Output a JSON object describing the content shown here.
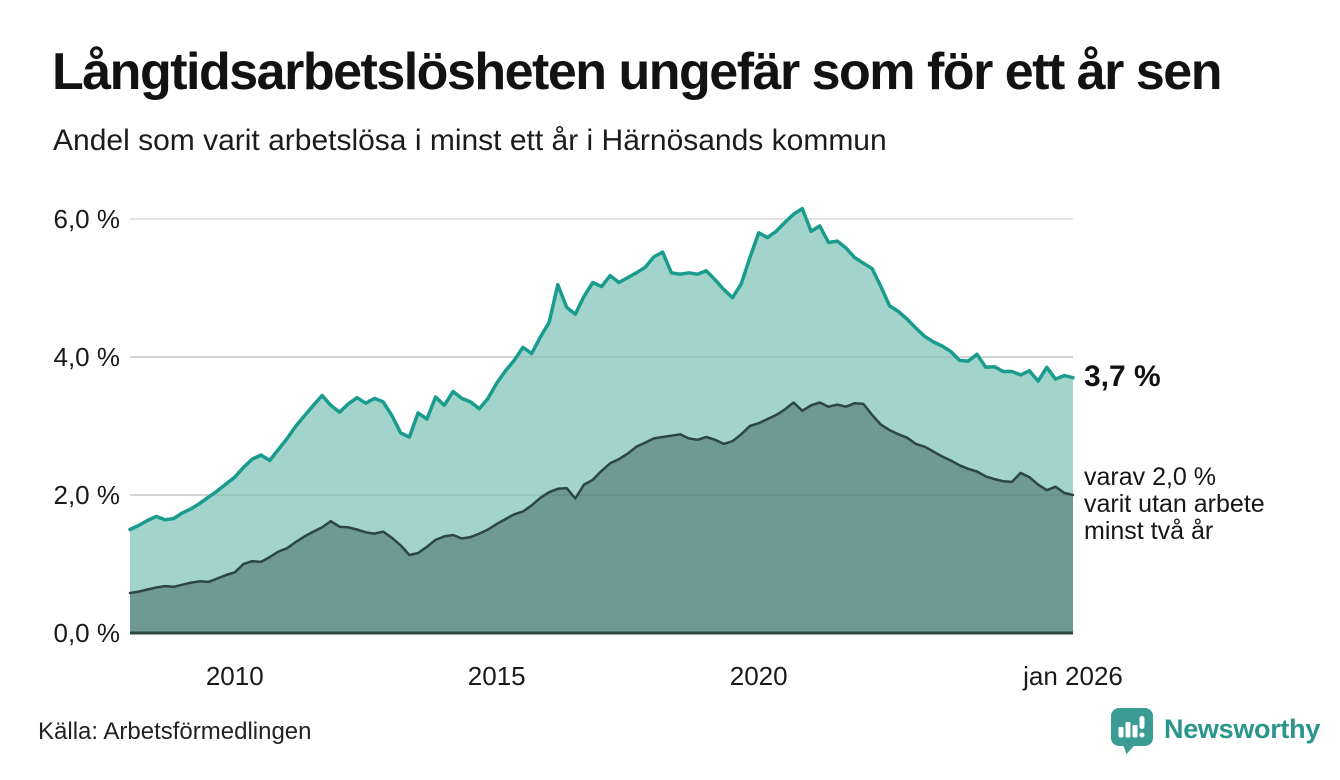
{
  "header": {
    "title": "Långtidsarbetslösheten ungefär som för ett år sen",
    "subtitle": "Andel som varit arbetslösa i minst ett år i Härnösands kommun"
  },
  "footer": {
    "source": "Källa: Arbetsförmedlingen",
    "brand": "Newsworthy"
  },
  "chart_data": {
    "type": "area",
    "title": "Långtidsarbetslösheten ungefär som för ett år sen",
    "subtitle": "Andel som varit arbetslösa i minst ett år i Härnösands kommun",
    "region": "Härnösands kommun",
    "unit": "%",
    "x_range": [
      2008,
      2026
    ],
    "ylim": [
      0,
      6.4
    ],
    "grid": true,
    "x_start": 2008,
    "x_step_years": 0.1666667,
    "x_ticks": [
      {
        "value": 2010,
        "label": "2010"
      },
      {
        "value": 2015,
        "label": "2015"
      },
      {
        "value": 2020,
        "label": "2020"
      },
      {
        "value": 2026,
        "label": "jan 2026"
      }
    ],
    "y_ticks": [
      {
        "value": 0,
        "label": "0,0 %"
      },
      {
        "value": 2,
        "label": "2,0 %"
      },
      {
        "value": 4,
        "label": "4,0 %"
      },
      {
        "value": 6,
        "label": "6,0 %"
      }
    ],
    "colors": {
      "series1_line": "#199c8d",
      "series1_fill": "#a2d4cc",
      "series2_line": "#2c4742",
      "series2_fill": "#6f9a94",
      "gridline": "#d8d8d8",
      "brand_teal": "#2b968c"
    },
    "series": [
      {
        "name": "Andel arbetslösa minst ett år",
        "line_color": "#199c8d",
        "fill_color": "#a2d4cc",
        "values": [
          1.5,
          1.56,
          1.63,
          1.69,
          1.64,
          1.66,
          1.74,
          1.8,
          1.88,
          1.97,
          2.06,
          2.16,
          2.26,
          2.4,
          2.52,
          2.58,
          2.5,
          2.66,
          2.82,
          3.0,
          3.15,
          3.3,
          3.44,
          3.3,
          3.2,
          3.32,
          3.41,
          3.33,
          3.4,
          3.35,
          3.15,
          2.9,
          2.84,
          3.19,
          3.1,
          3.42,
          3.3,
          3.5,
          3.4,
          3.35,
          3.25,
          3.4,
          3.62,
          3.8,
          3.95,
          4.14,
          4.05,
          4.29,
          4.5,
          5.05,
          4.72,
          4.62,
          4.88,
          5.08,
          5.02,
          5.18,
          5.08,
          5.15,
          5.22,
          5.3,
          5.45,
          5.52,
          5.22,
          5.2,
          5.22,
          5.2,
          5.25,
          5.12,
          4.98,
          4.86,
          5.06,
          5.44,
          5.8,
          5.73,
          5.82,
          5.95,
          6.07,
          6.15,
          5.82,
          5.9,
          5.66,
          5.68,
          5.58,
          5.44,
          5.36,
          5.28,
          5.02,
          4.74,
          4.66,
          4.55,
          4.42,
          4.3,
          4.22,
          4.16,
          4.08,
          3.95,
          3.94,
          4.04,
          3.85,
          3.86,
          3.79,
          3.79,
          3.74,
          3.8,
          3.65,
          3.85,
          3.68,
          3.73,
          3.7
        ]
      },
      {
        "name": "varav utan arbete minst två år",
        "line_color": "#2c4742",
        "fill_color": "#6f9a94",
        "values": [
          0.58,
          0.6,
          0.63,
          0.66,
          0.68,
          0.67,
          0.7,
          0.73,
          0.75,
          0.74,
          0.79,
          0.84,
          0.88,
          1.0,
          1.04,
          1.03,
          1.1,
          1.18,
          1.23,
          1.32,
          1.4,
          1.47,
          1.53,
          1.62,
          1.54,
          1.53,
          1.5,
          1.46,
          1.44,
          1.47,
          1.38,
          1.27,
          1.13,
          1.16,
          1.25,
          1.35,
          1.4,
          1.42,
          1.37,
          1.39,
          1.44,
          1.5,
          1.58,
          1.65,
          1.72,
          1.76,
          1.85,
          1.96,
          2.04,
          2.09,
          2.1,
          1.95,
          2.15,
          2.22,
          2.35,
          2.46,
          2.52,
          2.6,
          2.7,
          2.76,
          2.82,
          2.84,
          2.86,
          2.88,
          2.82,
          2.8,
          2.84,
          2.8,
          2.74,
          2.78,
          2.88,
          3.0,
          3.04,
          3.1,
          3.16,
          3.24,
          3.34,
          3.22,
          3.3,
          3.34,
          3.28,
          3.31,
          3.28,
          3.33,
          3.32,
          3.16,
          3.02,
          2.94,
          2.88,
          2.83,
          2.74,
          2.7,
          2.63,
          2.56,
          2.5,
          2.43,
          2.38,
          2.34,
          2.27,
          2.23,
          2.2,
          2.19,
          2.32,
          2.26,
          2.15,
          2.07,
          2.12,
          2.03,
          2.0
        ]
      }
    ],
    "annotations": {
      "series1_end_label": "3,7 %",
      "series1_end_value": 3.7,
      "series2_end_lines": [
        "varav 2,0 %",
        "varit utan arbete",
        "minst två år"
      ],
      "series2_end_value": 2.0
    }
  }
}
